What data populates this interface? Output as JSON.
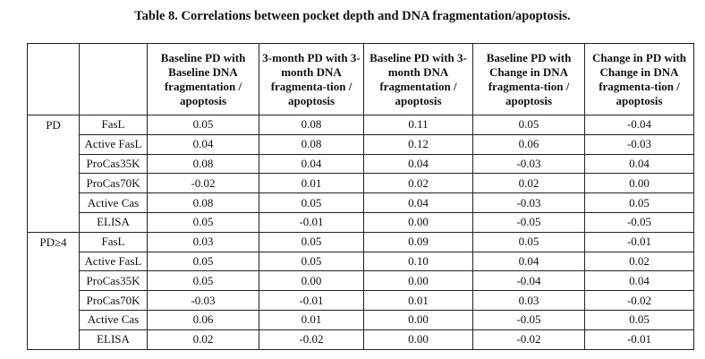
{
  "caption": "Table 8. Correlations between pocket depth and DNA fragmentation/apoptosis.",
  "header": {
    "columns": [
      "Baseline PD with Baseline DNA fragmentation / apoptosis",
      "3-month PD with 3-month DNA fragmenta-tion / apoptosis",
      "Baseline PD with 3-month DNA fragmentation / apoptosis",
      "Baseline PD with Change in DNA fragmenta-tion / apoptosis",
      "Change in PD with Change in DNA fragmenta-tion / apoptosis"
    ]
  },
  "groups": [
    {
      "label": "PD",
      "rows": [
        {
          "marker": "FasL",
          "values": [
            "0.05",
            "0.08",
            "0.11",
            "0.05",
            "-0.04"
          ]
        },
        {
          "marker": "Active FasL",
          "values": [
            "0.04",
            "0.08",
            "0.12",
            "0.06",
            "-0.03"
          ]
        },
        {
          "marker": "ProCas35K",
          "values": [
            "0.08",
            "0.04",
            "0.04",
            "-0.03",
            "0.04"
          ]
        },
        {
          "marker": "ProCas70K",
          "values": [
            "-0.02",
            "0.01",
            "0.02",
            "0.02",
            "0.00"
          ]
        },
        {
          "marker": "Active Cas",
          "values": [
            "0.08",
            "0.05",
            "0.04",
            "-0.03",
            "0.05"
          ]
        },
        {
          "marker": "ELISA",
          "values": [
            "0.05",
            "-0.01",
            "0.00",
            "-0.05",
            "-0.05"
          ]
        }
      ]
    },
    {
      "label": "PD≥4",
      "rows": [
        {
          "marker": "FasL",
          "values": [
            "0.03",
            "0.05",
            "0.09",
            "0.05",
            "-0.01"
          ]
        },
        {
          "marker": "Active FasL",
          "values": [
            "0.05",
            "0.05",
            "0.10",
            "0.04",
            "0.02"
          ]
        },
        {
          "marker": "ProCas35K",
          "values": [
            "0.05",
            "0.00",
            "0.00",
            "-0.04",
            "0.04"
          ]
        },
        {
          "marker": "ProCas70K",
          "values": [
            "-0.03",
            "-0.01",
            "0.01",
            "0.03",
            "-0.02"
          ]
        },
        {
          "marker": "Active Cas",
          "values": [
            "0.06",
            "0.01",
            "0.00",
            "-0.05",
            "0.05"
          ]
        },
        {
          "marker": "ELISA",
          "values": [
            "0.02",
            "-0.02",
            "0.00",
            "-0.02",
            "-0.01"
          ]
        }
      ]
    }
  ]
}
